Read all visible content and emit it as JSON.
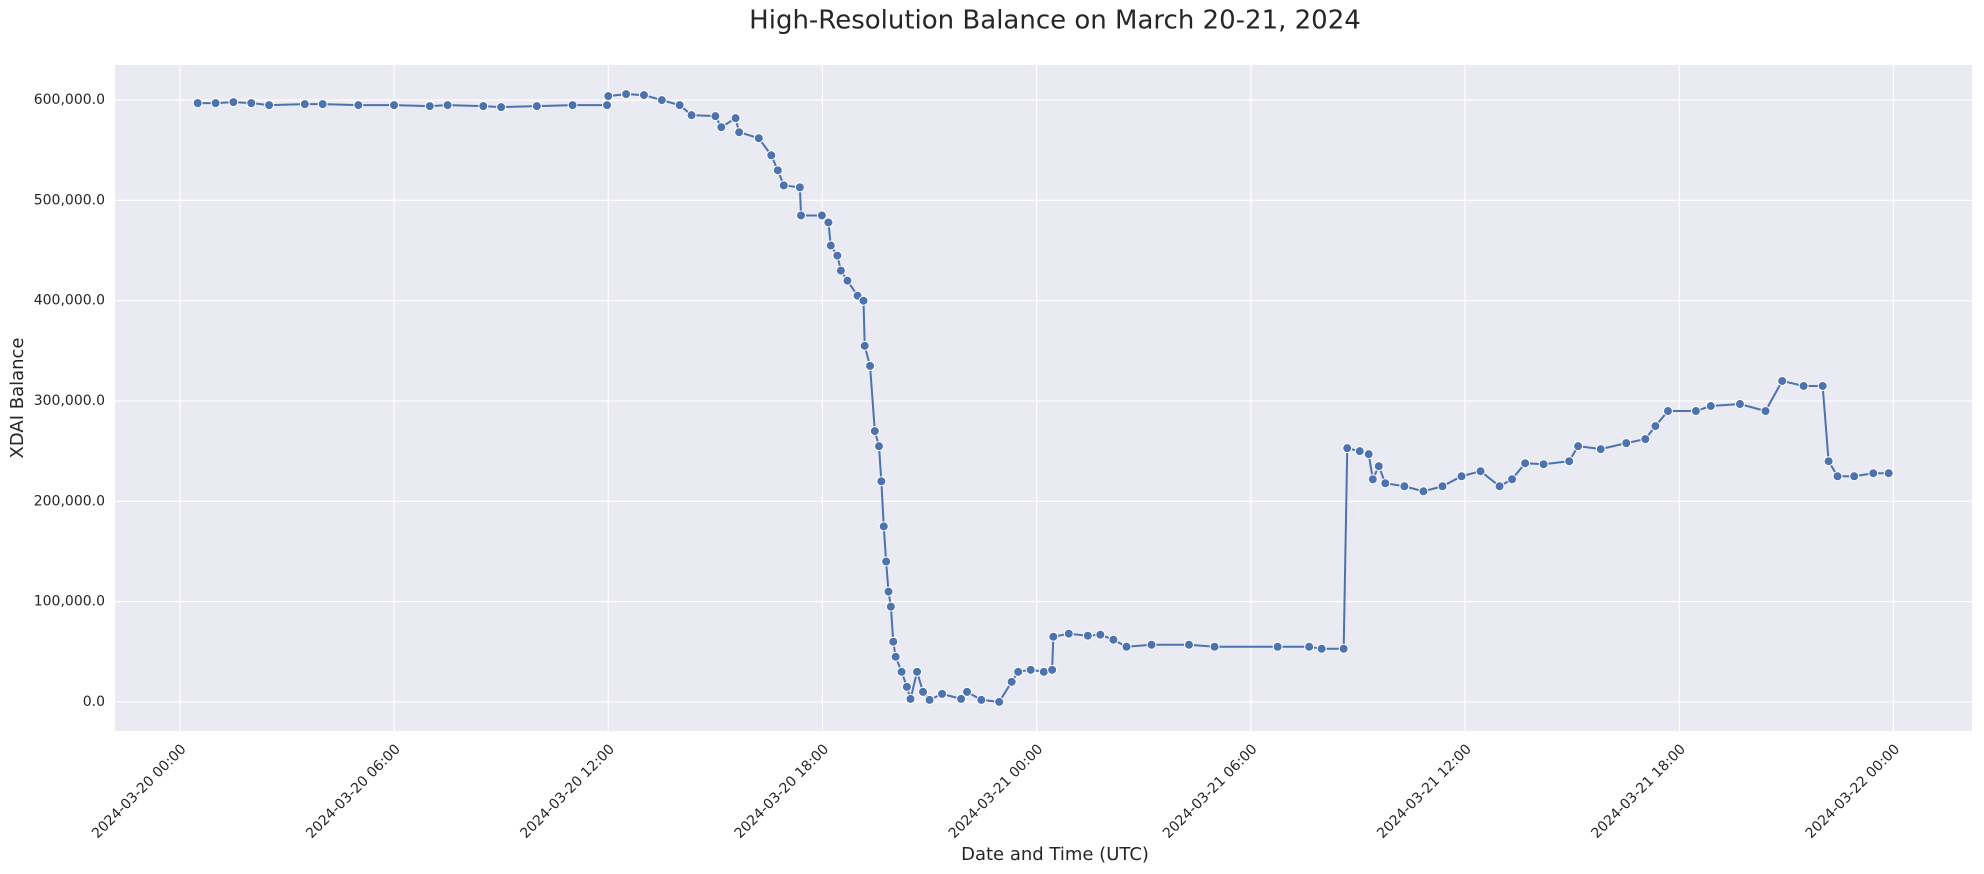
{
  "chart_data": {
    "type": "line",
    "title": "High-Resolution Balance on March 20-21, 2024",
    "x_label": "Date and Time (UTC)",
    "y_label": "XDAI Balance",
    "x": [
      "2024-03-20 00:30",
      "2024-03-20 01:00",
      "2024-03-20 01:30",
      "2024-03-20 02:00",
      "2024-03-20 02:30",
      "2024-03-20 03:30",
      "2024-03-20 04:00",
      "2024-03-20 05:00",
      "2024-03-20 06:00",
      "2024-03-20 07:00",
      "2024-03-20 07:30",
      "2024-03-20 08:30",
      "2024-03-20 09:00",
      "2024-03-20 10:00",
      "2024-03-20 11:00",
      "2024-03-20 11:58",
      "2024-03-20 12:00",
      "2024-03-20 12:30",
      "2024-03-20 13:00",
      "2024-03-20 13:30",
      "2024-03-20 14:00",
      "2024-03-20 14:20",
      "2024-03-20 15:00",
      "2024-03-20 15:10",
      "2024-03-20 15:34",
      "2024-03-20 15:40",
      "2024-03-20 16:13",
      "2024-03-20 16:34",
      "2024-03-20 16:45",
      "2024-03-20 16:55",
      "2024-03-20 17:22",
      "2024-03-20 17:24",
      "2024-03-20 17:59",
      "2024-03-20 18:10",
      "2024-03-20 18:14",
      "2024-03-20 18:25",
      "2024-03-20 18:31",
      "2024-03-20 18:42",
      "2024-03-20 18:59",
      "2024-03-20 19:09",
      "2024-03-20 19:11",
      "2024-03-20 19:20",
      "2024-03-20 19:28",
      "2024-03-20 19:35",
      "2024-03-20 19:39",
      "2024-03-20 19:43",
      "2024-03-20 19:47",
      "2024-03-20 19:51",
      "2024-03-20 19:55",
      "2024-03-20 19:59",
      "2024-03-20 20:03",
      "2024-03-20 20:13",
      "2024-03-20 20:22",
      "2024-03-20 20:28",
      "2024-03-20 20:39",
      "2024-03-20 20:49",
      "2024-03-20 21:00",
      "2024-03-20 21:21",
      "2024-03-20 21:53",
      "2024-03-20 22:03",
      "2024-03-20 22:27",
      "2024-03-20 22:57",
      "2024-03-20 23:18",
      "2024-03-20 23:29",
      "2024-03-20 23:50",
      "2024-03-21 00:12",
      "2024-03-21 00:26",
      "2024-03-21 00:28",
      "2024-03-21 00:54",
      "2024-03-21 01:26",
      "2024-03-21 01:47",
      "2024-03-21 02:09",
      "2024-03-21 02:31",
      "2024-03-21 03:13",
      "2024-03-21 04:16",
      "2024-03-21 04:59",
      "2024-03-21 06:45",
      "2024-03-21 07:38",
      "2024-03-21 07:59",
      "2024-03-21 08:36",
      "2024-03-21 08:42",
      "2024-03-21 09:03",
      "2024-03-21 09:18",
      "2024-03-21 09:25",
      "2024-03-21 09:35",
      "2024-03-21 09:46",
      "2024-03-21 10:18",
      "2024-03-21 10:50",
      "2024-03-21 11:22",
      "2024-03-21 11:54",
      "2024-03-21 12:26",
      "2024-03-21 12:58",
      "2024-03-21 13:19",
      "2024-03-21 13:41",
      "2024-03-21 14:12",
      "2024-03-21 14:55",
      "2024-03-21 15:10",
      "2024-03-21 15:48",
      "2024-03-21 16:31",
      "2024-03-21 17:03",
      "2024-03-21 17:20",
      "2024-03-21 17:41",
      "2024-03-21 18:28",
      "2024-03-21 18:53",
      "2024-03-21 19:42",
      "2024-03-21 20:25",
      "2024-03-21 20:53",
      "2024-03-21 21:29",
      "2024-03-21 22:01",
      "2024-03-21 22:11",
      "2024-03-21 22:26",
      "2024-03-21 22:54",
      "2024-03-21 23:26",
      "2024-03-21 23:52"
    ],
    "series": [
      {
        "name": "XDAI Balance",
        "color": "#4c72b0",
        "values": [
          597000,
          597000,
          598000,
          597000,
          595000,
          596000,
          596000,
          595000,
          595000,
          594000,
          595000,
          594000,
          593000,
          594000,
          595000,
          595000,
          604000,
          606000,
          605000,
          600000,
          595000,
          585000,
          584000,
          573000,
          582000,
          568000,
          562000,
          545000,
          530000,
          515000,
          513000,
          485000,
          485000,
          478000,
          455000,
          445000,
          430000,
          420000,
          405000,
          400000,
          355000,
          335000,
          270000,
          255000,
          220000,
          175000,
          140000,
          110000,
          95000,
          60000,
          45000,
          30000,
          15000,
          3000,
          30000,
          10000,
          2000,
          8000,
          3000,
          10000,
          2000,
          0,
          20000,
          30000,
          32000,
          30000,
          32000,
          65000,
          68000,
          66000,
          67000,
          62000,
          55000,
          57000,
          57000,
          55000,
          55000,
          55000,
          53000,
          53000,
          253000,
          250000,
          247000,
          222000,
          235000,
          218000,
          215000,
          210000,
          215000,
          225000,
          230000,
          215000,
          222000,
          238000,
          237000,
          240000,
          255000,
          252000,
          258000,
          262000,
          275000,
          290000,
          290000,
          295000,
          297000,
          290000,
          320000,
          315000,
          315000,
          240000,
          225000,
          225000,
          228000,
          228000
        ]
      }
    ],
    "xlim": [
      "2024-03-19 22:11",
      "2024-03-22 02:12"
    ],
    "xticks": [
      "2024-03-20 00:00",
      "2024-03-20 06:00",
      "2024-03-20 12:00",
      "2024-03-20 18:00",
      "2024-03-21 00:00",
      "2024-03-21 06:00",
      "2024-03-21 12:00",
      "2024-03-21 18:00",
      "2024-03-22 00:00"
    ],
    "ylim": [
      -29000,
      635000
    ],
    "yticks": [
      {
        "value": 0,
        "label": "0.0"
      },
      {
        "value": 100000,
        "label": "100,000.0"
      },
      {
        "value": 200000,
        "label": "200,000.0"
      },
      {
        "value": 300000,
        "label": "300,000.0"
      },
      {
        "value": 400000,
        "label": "400,000.0"
      },
      {
        "value": 500000,
        "label": "500,000.0"
      },
      {
        "value": 600000,
        "label": "600,000.0"
      }
    ],
    "grid": true,
    "markers": true
  }
}
